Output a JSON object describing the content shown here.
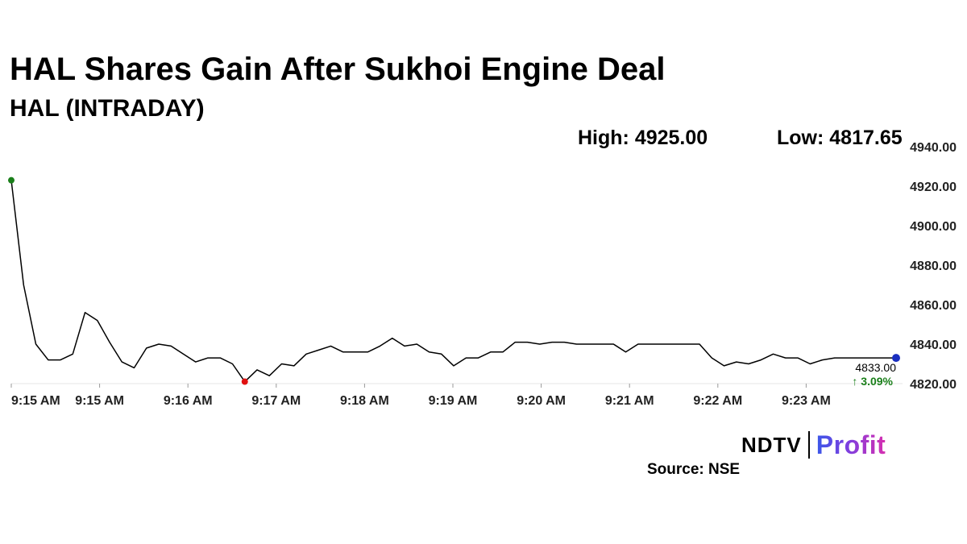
{
  "header": {
    "title": "HAL Shares Gain After Sukhoi Engine Deal",
    "subtitle": "HAL (INTRADAY)"
  },
  "stats": {
    "high": "High: 4925.00",
    "low": "Low: 4817.65"
  },
  "footer": {
    "brand_left": "NDTV",
    "brand_right": "Profit",
    "source": "Source: NSE"
  },
  "colors": {
    "line": "#000000",
    "high_marker": "#1a7f1a",
    "low_marker": "#e01010",
    "last_marker": "#1a2fc0",
    "change_text": "#1a7f1a"
  },
  "chart_data": {
    "type": "line",
    "title": "HAL (INTRADAY)",
    "y_ticks": [
      "4940.00",
      "4920.00",
      "4900.00",
      "4880.00",
      "4860.00",
      "4840.00",
      "4820.00"
    ],
    "ylim": [
      4820,
      4940
    ],
    "x_ticks": [
      "9:15 AM",
      "9:15 AM",
      "9:16 AM",
      "9:17 AM",
      "9:18 AM",
      "9:19 AM",
      "9:20 AM",
      "9:21 AM",
      "9:22 AM",
      "9:23 AM"
    ],
    "grid": false,
    "legend": "none",
    "last_value_label": "4833.00",
    "change_label": "↑ 3.09%",
    "series": [
      {
        "values": [
          4923,
          4870,
          4840,
          4832,
          4832,
          4835,
          4856,
          4852,
          4841,
          4831,
          4828,
          4838,
          4840,
          4839,
          4835,
          4831,
          4833,
          4833,
          4830,
          4821,
          4827,
          4824,
          4830,
          4829,
          4835,
          4837,
          4839,
          4836,
          4836,
          4836,
          4839,
          4843,
          4839,
          4840,
          4836,
          4835,
          4829,
          4833,
          4833,
          4836,
          4836,
          4841,
          4841,
          4840,
          4841,
          4841,
          4840,
          4840,
          4840,
          4840,
          4836,
          4840,
          4840,
          4840,
          4840,
          4840,
          4840,
          4833,
          4829,
          4831,
          4830,
          4832,
          4835,
          4833,
          4833,
          4830,
          4832,
          4833,
          4833,
          4833,
          4833,
          4833,
          4833
        ]
      }
    ]
  }
}
